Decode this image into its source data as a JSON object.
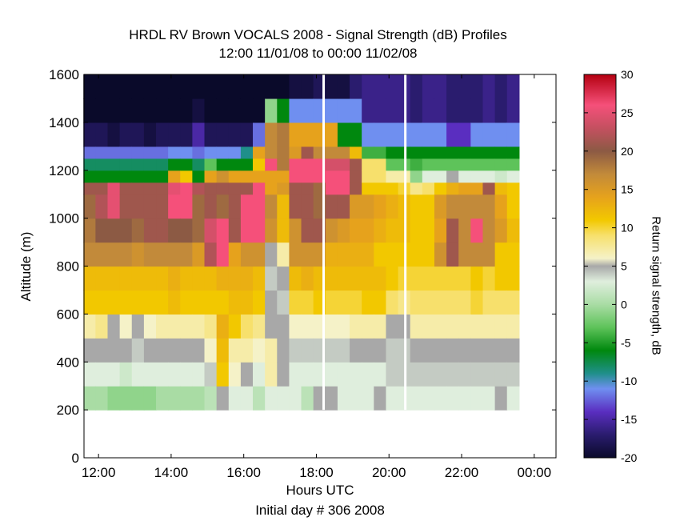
{
  "chart_data": {
    "type": "heatmap",
    "title": "HRDL RV Brown VOCALS 2008 - Signal Strength (dB) Profiles",
    "subtitle": "12:00 11/01/08 to 00:00 11/02/08",
    "xlabel": "Hours UTC",
    "xlabel2": "Initial day # 306  2008",
    "ylabel": "Altitude (m)",
    "colorbar_label": "Return signal strength, dB",
    "xlim": [
      11.6,
      24.6
    ],
    "ylim": [
      0,
      1600
    ],
    "x_ticks": [
      12,
      14,
      16,
      18,
      20,
      22,
      24
    ],
    "x_tick_labels": [
      "12:00",
      "14:00",
      "16:00",
      "18:00",
      "20:00",
      "22:00",
      "00:00"
    ],
    "y_ticks": [
      0,
      200,
      400,
      600,
      800,
      1000,
      1200,
      1400,
      1600
    ],
    "y_tick_labels": [
      "0",
      "200",
      "400",
      "600",
      "800",
      "1000",
      "1200",
      "1400",
      "1600"
    ],
    "clim": [
      -20,
      30
    ],
    "colorbar_ticks": [
      30,
      25,
      20,
      15,
      10,
      5,
      0,
      -5,
      -10,
      -15,
      -20
    ],
    "colorbar_tick_labels": [
      "30",
      "25",
      "20",
      "15",
      "10",
      "5",
      "0",
      "-5",
      "-10",
      "-15",
      "-20"
    ],
    "colorscale": [
      {
        "v": -20,
        "c": "#0a0a2a"
      },
      {
        "v": -17,
        "c": "#2a1c6e"
      },
      {
        "v": -14,
        "c": "#5a2ec0"
      },
      {
        "v": -11,
        "c": "#6f8ff0"
      },
      {
        "v": -9,
        "c": "#1f8f8a"
      },
      {
        "v": -6,
        "c": "#00880e"
      },
      {
        "v": -3,
        "c": "#5ec35a"
      },
      {
        "v": 0,
        "c": "#a9dca4"
      },
      {
        "v": 3,
        "c": "#dfeedd"
      },
      {
        "v": 5,
        "c": "#a8a8a8"
      },
      {
        "v": 6,
        "c": "#f5f2c8"
      },
      {
        "v": 9,
        "c": "#f7e06c"
      },
      {
        "v": 11,
        "c": "#f2c800"
      },
      {
        "v": 14,
        "c": "#e6a21c"
      },
      {
        "v": 17,
        "c": "#c28a3a"
      },
      {
        "v": 20,
        "c": "#8c5a44"
      },
      {
        "v": 23,
        "c": "#c45060"
      },
      {
        "v": 26,
        "c": "#f5507a"
      },
      {
        "v": 30,
        "c": "#b40010"
      }
    ],
    "altitudes": [
      200,
      300,
      400,
      500,
      600,
      700,
      800,
      900,
      1000,
      1100,
      1150,
      1200,
      1250,
      1300,
      1400,
      1500
    ],
    "time_step_hours": 0.3333,
    "times": [
      11.75,
      12.0833,
      12.4167,
      12.75,
      13.0833,
      13.4167,
      13.75,
      14.0833,
      14.4167,
      14.75,
      15.0833,
      15.4167,
      15.75,
      16.0833,
      16.4167,
      16.75,
      17.0833,
      17.4167,
      17.75,
      18.0833,
      18.4167,
      18.75,
      19.0833,
      19.4167,
      19.75,
      20.0833,
      20.4167,
      20.75,
      21.0833,
      21.4167,
      21.75,
      22.0833,
      22.4167,
      22.75,
      23.0833,
      23.4167
    ],
    "values": [
      [
        0,
        3,
        5,
        7,
        11,
        12,
        17,
        18,
        19,
        21,
        -6,
        -8,
        -12,
        -18,
        -20,
        -20
      ],
      [
        0,
        3,
        5,
        8,
        11,
        12,
        17,
        20,
        22,
        21,
        -6,
        -8,
        -12,
        -18,
        -20,
        -20
      ],
      [
        -1,
        3,
        5,
        5,
        11,
        12,
        17,
        20,
        25,
        25,
        -6,
        -8,
        -12,
        -19,
        -20,
        -20
      ],
      [
        -1,
        2,
        5,
        6,
        11,
        12,
        17,
        20,
        21,
        21,
        -6,
        -8,
        -12,
        -18,
        -20,
        -20
      ],
      [
        -1,
        3,
        4,
        5,
        11,
        12,
        16,
        19,
        21,
        21,
        -6,
        -8,
        -12,
        -18,
        -20,
        -20
      ],
      [
        -1,
        3,
        5,
        6,
        11,
        12,
        17,
        21,
        21,
        21,
        -6,
        -8,
        -12,
        -19,
        -20,
        -20
      ],
      [
        0,
        3,
        5,
        7,
        11,
        12,
        17,
        21,
        21,
        21,
        -6,
        -8,
        -12,
        -18,
        -20,
        -20
      ],
      [
        0,
        3,
        5,
        7,
        12,
        13,
        17,
        20,
        26,
        25,
        14,
        -6,
        -11,
        -18,
        -20,
        -20
      ],
      [
        0,
        3,
        5,
        7,
        11,
        12,
        17,
        20,
        26,
        26,
        11,
        -6,
        -11,
        -18,
        -20,
        -20
      ],
      [
        0,
        3,
        5,
        7,
        11,
        12,
        15,
        19,
        19,
        22,
        -6,
        -8,
        -12,
        -15,
        -19,
        -20
      ],
      [
        1,
        4,
        6,
        8,
        11,
        12,
        22,
        24,
        21,
        21,
        14,
        -3,
        -11,
        -18,
        -20,
        -20
      ],
      [
        5,
        11,
        12,
        13,
        11,
        13,
        26,
        26,
        19,
        21,
        16,
        -6,
        -11,
        -18,
        -20,
        -20
      ],
      [
        3,
        6,
        7,
        11,
        12,
        13,
        14,
        21,
        21,
        21,
        14,
        -6,
        -11,
        -18,
        -20,
        -20
      ],
      [
        3,
        5,
        7,
        9,
        12,
        13,
        16,
        26,
        26,
        21,
        14,
        -6,
        -9,
        -18,
        -20,
        -20
      ],
      [
        1,
        3,
        6,
        8,
        11,
        12,
        16,
        26,
        26,
        26,
        14,
        11,
        14,
        -12,
        -20,
        -20
      ],
      [
        3,
        7,
        7,
        5,
        5,
        4,
        5,
        16,
        17,
        14,
        14,
        26,
        17,
        17,
        -1,
        -20
      ],
      [
        3,
        5,
        5,
        5,
        4,
        5,
        7,
        12,
        12,
        15,
        14,
        18,
        18,
        18,
        -6,
        -20
      ],
      [
        3,
        3,
        4,
        6,
        10,
        12,
        16,
        16,
        21,
        21,
        26,
        26,
        15,
        14,
        -11,
        -19
      ],
      [
        1,
        3,
        4,
        6,
        10,
        13,
        16,
        21,
        21,
        21,
        26,
        26,
        21,
        14,
        -11,
        -19
      ],
      [
        5,
        3,
        4,
        6,
        11,
        12,
        16,
        21,
        19,
        19,
        26,
        26,
        17,
        14,
        -11,
        -18
      ],
      [
        5,
        3,
        4,
        6,
        10,
        12,
        13,
        16,
        21,
        26,
        26,
        24,
        17,
        14,
        -11,
        -19
      ],
      [
        3,
        3,
        4,
        6,
        10,
        12,
        13,
        15,
        21,
        26,
        26,
        24,
        17,
        -6,
        -11,
        -19
      ],
      [
        3,
        3,
        5,
        7,
        10,
        12,
        13,
        14,
        15,
        21,
        21,
        21,
        12,
        -6,
        -11,
        -17
      ],
      [
        3,
        3,
        5,
        7,
        11,
        12,
        13,
        14,
        15,
        11,
        9,
        9,
        -4,
        -11,
        -16,
        -16
      ],
      [
        5,
        3,
        5,
        7,
        11,
        12,
        11,
        13,
        14,
        11,
        9,
        9,
        -4,
        -11,
        -16,
        -16
      ],
      [
        3,
        4,
        4,
        5,
        9,
        11,
        11,
        12,
        13,
        11,
        7,
        -3,
        -6,
        -11,
        -16,
        -16
      ],
      [
        3,
        4,
        4,
        5,
        8,
        10,
        11,
        12,
        12,
        10,
        7,
        -3,
        -6,
        -11,
        -16,
        -16
      ],
      [
        3,
        4,
        5,
        7,
        9,
        10,
        11,
        11,
        11,
        8,
        -1,
        -4,
        -6,
        -11,
        -17,
        -17
      ],
      [
        3,
        4,
        5,
        7,
        9,
        10,
        11,
        11,
        11,
        9,
        3,
        -3,
        -6,
        -11,
        -16,
        -16
      ],
      [
        3,
        4,
        5,
        7,
        9,
        10,
        16,
        14,
        15,
        11,
        3,
        -3,
        -6,
        -11,
        -16,
        -16
      ],
      [
        3,
        4,
        5,
        7,
        9,
        10,
        21,
        21,
        17,
        13,
        5,
        -3,
        -6,
        -14,
        -17,
        -17
      ],
      [
        3,
        4,
        5,
        7,
        9,
        10,
        17,
        17,
        17,
        14,
        3,
        -3,
        -6,
        -14,
        -17,
        -17
      ],
      [
        3,
        4,
        5,
        7,
        10,
        11,
        17,
        26,
        17,
        14,
        3,
        -3,
        -6,
        -11,
        -17,
        -17
      ],
      [
        3,
        4,
        5,
        7,
        9,
        10,
        17,
        17,
        17,
        21,
        3,
        -3,
        -6,
        -11,
        -16,
        -16
      ],
      [
        5,
        4,
        5,
        7,
        9,
        11,
        11,
        15,
        14,
        12,
        2,
        -3,
        -6,
        -11,
        -17,
        -17
      ],
      [
        3,
        4,
        5,
        7,
        9,
        11,
        11,
        12,
        11,
        11,
        3,
        -3,
        -6,
        -11,
        -16,
        -16
      ]
    ],
    "data_gaps_hours": [
      18.2,
      20.45
    ]
  }
}
